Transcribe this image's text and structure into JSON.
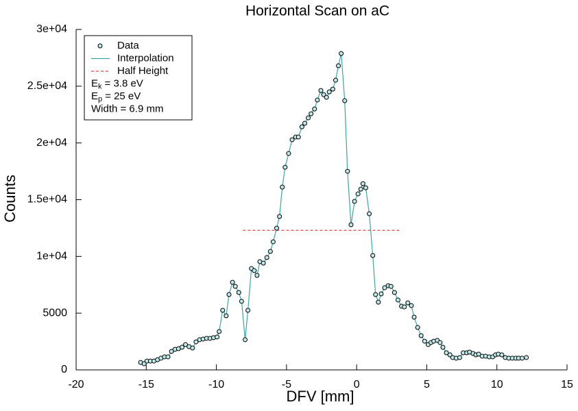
{
  "chart_data": {
    "type": "line",
    "title": "Horizontal Scan on aC",
    "x_label": "DFV [mm]",
    "y_label": "Counts",
    "xlim": [
      -20,
      15
    ],
    "xticks": [
      -20,
      -15,
      -10,
      -5,
      0,
      5,
      10,
      15
    ],
    "ylim": [
      0,
      30000
    ],
    "yticks": [
      0,
      5000,
      {
        "value": 10000,
        "label": "1e+04"
      },
      {
        "value": 15000,
        "label": "1.5e+04"
      },
      {
        "value": 20000,
        "label": "2e+04"
      },
      {
        "value": 25000,
        "label": "2.5e+04"
      },
      {
        "value": 30000,
        "label": "3e+04"
      }
    ],
    "legend": "upper left",
    "series": [
      {
        "name": "Data",
        "style": "markers",
        "color": "#bfe8e8",
        "x": [
          -15.4,
          -15.15,
          -14.95,
          -14.7,
          -14.45,
          -14.2,
          -13.95,
          -13.7,
          -13.45,
          -13.2,
          -12.95,
          -12.7,
          -12.45,
          -12.2,
          -11.95,
          -11.7,
          -11.45,
          -11.2,
          -10.95,
          -10.7,
          -10.45,
          -10.2,
          -9.95,
          -9.8,
          -9.55,
          -9.3,
          -9.1,
          -8.85,
          -8.65,
          -8.4,
          -8.2,
          -7.95,
          -7.75,
          -7.5,
          -7.3,
          -7.1,
          -6.9,
          -6.65,
          -6.4,
          -6.15,
          -5.95,
          -5.7,
          -5.5,
          -5.3,
          -5.1,
          -4.85,
          -4.6,
          -4.35,
          -4.15,
          -3.9,
          -3.7,
          -3.45,
          -3.25,
          -3.0,
          -2.8,
          -2.55,
          -2.35,
          -2.15,
          -1.95,
          -1.7,
          -1.5,
          -1.3,
          -1.1,
          -0.85,
          -0.65,
          -0.4,
          -0.15,
          0.1,
          0.3,
          0.45,
          0.65,
          0.9,
          1.15,
          1.35,
          1.55,
          1.75,
          2.0,
          2.25,
          2.45,
          2.7,
          2.95,
          3.2,
          3.4,
          3.65,
          3.9,
          4.1,
          4.35,
          4.6,
          4.85,
          5.1,
          5.3,
          5.5,
          5.75,
          5.95,
          6.15,
          6.4,
          6.65,
          6.85,
          7.1,
          7.35,
          7.6,
          7.85,
          8.05,
          8.3,
          8.5,
          8.7,
          8.95,
          9.2,
          9.45,
          9.7,
          9.9,
          10.1,
          10.35,
          10.6,
          10.85,
          11.1,
          11.35,
          11.55,
          11.8,
          12.1
        ],
        "values": [
          660,
          540,
          780,
          780,
          780,
          900,
          1030,
          1150,
          1150,
          1630,
          1810,
          1870,
          2000,
          2230,
          2050,
          1930,
          2470,
          2660,
          2720,
          2780,
          2780,
          2840,
          2900,
          3380,
          5250,
          4770,
          6640,
          7720,
          7360,
          6820,
          6040,
          2660,
          5250,
          8930,
          8750,
          8330,
          9540,
          9410,
          9900,
          10440,
          11290,
          12490,
          13520,
          16110,
          17860,
          19070,
          20280,
          20520,
          20520,
          21420,
          21730,
          22210,
          22570,
          22990,
          23780,
          24620,
          24260,
          24020,
          24500,
          24740,
          25530,
          26800,
          27880,
          23720,
          17500,
          12790,
          14850,
          15510,
          15930,
          16410,
          16050,
          13760,
          10080,
          6640,
          5970,
          6700,
          7240,
          7420,
          7360,
          6820,
          6160,
          5610,
          5550,
          5910,
          5670,
          4650,
          3740,
          3020,
          2530,
          2230,
          2410,
          2530,
          2600,
          2410,
          1990,
          1510,
          1330,
          1090,
          1030,
          1090,
          1510,
          1510,
          1570,
          1450,
          1330,
          1390,
          1210,
          1210,
          1150,
          1150,
          1330,
          1390,
          1330,
          1090,
          1030,
          1030,
          1030,
          1030,
          1030,
          1090
        ]
      },
      {
        "name": "Interpolation",
        "style": "solid",
        "color": "#3aa6a6",
        "x": [
          -15.4,
          -15.15,
          -14.95,
          -14.7,
          -14.45,
          -14.2,
          -13.95,
          -13.7,
          -13.45,
          -13.2,
          -12.95,
          -12.7,
          -12.45,
          -12.2,
          -11.95,
          -11.7,
          -11.45,
          -11.2,
          -10.95,
          -10.7,
          -10.45,
          -10.2,
          -9.95,
          -9.8,
          -9.55,
          -9.3,
          -9.1,
          -8.85,
          -8.65,
          -8.4,
          -8.2,
          -7.95,
          -7.75,
          -7.5,
          -7.3,
          -7.1,
          -6.9,
          -6.65,
          -6.4,
          -6.15,
          -5.95,
          -5.7,
          -5.5,
          -5.3,
          -5.1,
          -4.85,
          -4.6,
          -4.35,
          -4.15,
          -3.9,
          -3.7,
          -3.45,
          -3.25,
          -3.0,
          -2.8,
          -2.55,
          -2.35,
          -2.15,
          -1.95,
          -1.7,
          -1.5,
          -1.3,
          -1.1,
          -0.85,
          -0.65,
          -0.4,
          -0.15,
          0.1,
          0.3,
          0.45,
          0.65,
          0.9,
          1.15,
          1.35,
          1.55,
          1.75,
          2.0,
          2.25,
          2.45,
          2.7,
          2.95,
          3.2,
          3.4,
          3.65,
          3.9,
          4.1,
          4.35,
          4.6,
          4.85,
          5.1,
          5.3,
          5.5,
          5.75,
          5.95,
          6.15,
          6.4,
          6.65,
          6.85,
          7.1,
          7.35,
          7.6,
          7.85,
          8.05,
          8.3,
          8.5,
          8.7,
          8.95,
          9.2,
          9.45,
          9.7,
          9.9,
          10.1,
          10.35,
          10.6,
          10.85,
          11.1,
          11.35,
          11.55,
          11.8,
          12.1
        ],
        "values": [
          660,
          540,
          780,
          780,
          780,
          900,
          1030,
          1150,
          1150,
          1630,
          1810,
          1870,
          2000,
          2230,
          2050,
          1930,
          2470,
          2660,
          2720,
          2780,
          2780,
          2840,
          2900,
          3380,
          5250,
          4770,
          6640,
          7720,
          7360,
          6820,
          6040,
          2660,
          5250,
          8930,
          8750,
          8330,
          9540,
          9410,
          9900,
          10440,
          11290,
          12490,
          13520,
          16110,
          17860,
          19070,
          20280,
          20520,
          20520,
          21420,
          21730,
          22210,
          22570,
          22990,
          23780,
          24620,
          24260,
          24020,
          24500,
          24740,
          25530,
          26800,
          27880,
          23720,
          17500,
          12790,
          14850,
          15510,
          15930,
          16410,
          16050,
          13760,
          10080,
          6640,
          5970,
          6700,
          7240,
          7420,
          7360,
          6820,
          6160,
          5610,
          5550,
          5910,
          5670,
          4650,
          3740,
          3020,
          2530,
          2230,
          2410,
          2530,
          2600,
          2410,
          1990,
          1510,
          1330,
          1090,
          1030,
          1090,
          1510,
          1510,
          1570,
          1450,
          1330,
          1390,
          1210,
          1210,
          1150,
          1150,
          1330,
          1390,
          1330,
          1090,
          1030,
          1030,
          1030,
          1030,
          1030,
          1090
        ]
      },
      {
        "name": "Half Height",
        "style": "dashed",
        "color": "#e8413c",
        "x": [
          -8.1,
          3.1
        ],
        "values": [
          12300,
          12300
        ]
      }
    ],
    "annotations": [
      {
        "symbol": "E",
        "subscript": "k",
        "text": "= 3.8 eV"
      },
      {
        "symbol": "E",
        "subscript": "p",
        "text": "= 25 eV"
      },
      {
        "text": "Width = 6.9 mm"
      }
    ]
  }
}
